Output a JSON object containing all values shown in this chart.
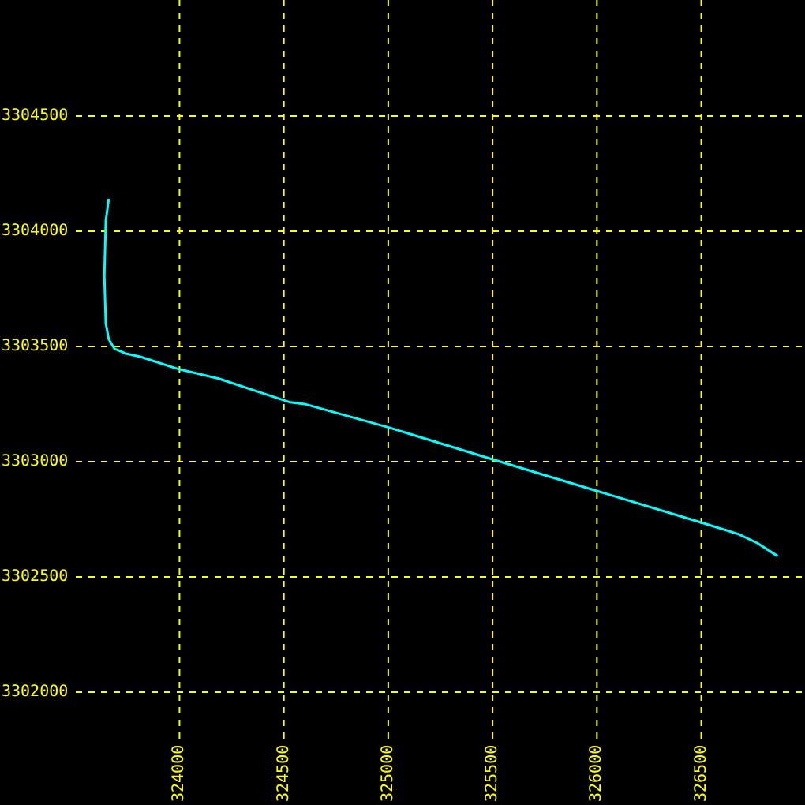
{
  "chart_data": {
    "type": "line",
    "x": [
      323661,
      323647,
      323640,
      323647,
      323661,
      323688,
      323743,
      323812,
      323997,
      324188,
      324394,
      324531,
      324599,
      324999,
      325499,
      325999,
      326499,
      326677,
      326768,
      326866
    ],
    "series": [
      {
        "color": "#00ffff",
        "values": [
          3304140,
          3304045,
          3303805,
          3303599,
          3303531,
          3303490,
          3303469,
          3303455,
          3303401,
          3303360,
          3303298,
          3303257,
          3303250,
          3303149,
          3303010,
          3302873,
          3302736,
          3302686,
          3302647,
          3302590
        ]
      }
    ],
    "xlim": [
      323140,
      326997
    ],
    "ylim": [
      3301510,
      3305003
    ],
    "xticks": [
      324000,
      324500,
      325000,
      325500,
      326000,
      326500
    ],
    "yticks": [
      3302000,
      3302500,
      3303000,
      3303500,
      3304000,
      3304500
    ],
    "grid": true,
    "marker": "none",
    "line_style": "solid"
  }
}
